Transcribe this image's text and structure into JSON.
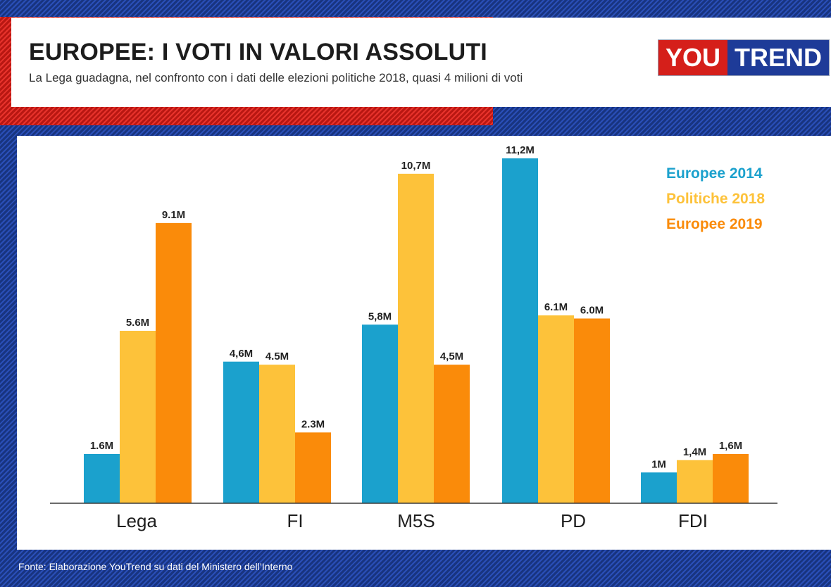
{
  "header": {
    "title": "EUROPEE: I VOTI IN VALORI ASSOLUTI",
    "subtitle": "La Lega guadagna, nel confronto con i dati delle elezioni politiche 2018, quasi 4 milioni di voti"
  },
  "logo": {
    "part1": "YOU",
    "part2": "TREND"
  },
  "source": "Fonte:  Elaborazione YouTrend su dati del Ministero dell’Interno",
  "colors": {
    "europee2014": "#1ba1cd",
    "politiche2018": "#fdc23a",
    "europee2019": "#fa8b0a"
  },
  "chart_data": {
    "type": "bar",
    "title": "EUROPEE: I VOTI IN VALORI ASSOLUTI",
    "xlabel": "",
    "ylabel": "",
    "ylim": [
      0,
      11.2
    ],
    "unit": "milioni di voti",
    "legend_position": "top-right",
    "categories": [
      "Lega",
      "FI",
      "M5S",
      "PD",
      "FDI"
    ],
    "series": [
      {
        "name": "Europee 2014",
        "color": "#1ba1cd",
        "values": [
          1.6,
          4.6,
          5.8,
          11.2,
          1.0
        ],
        "labels": [
          "1.6M",
          "4,6M",
          "5,8M",
          "11,2M",
          "1M"
        ]
      },
      {
        "name": "Politiche 2018",
        "color": "#fdc23a",
        "values": [
          5.6,
          4.5,
          10.7,
          6.1,
          1.4
        ],
        "labels": [
          "5.6M",
          "4.5M",
          "10,7M",
          "6.1M",
          "1,4M"
        ]
      },
      {
        "name": "Europee 2019",
        "color": "#fa8b0a",
        "values": [
          9.1,
          2.3,
          4.5,
          6.0,
          1.6
        ],
        "labels": [
          "9.1M",
          "2.3M",
          "4,5M",
          "6.0M",
          "1,6M"
        ]
      }
    ]
  }
}
